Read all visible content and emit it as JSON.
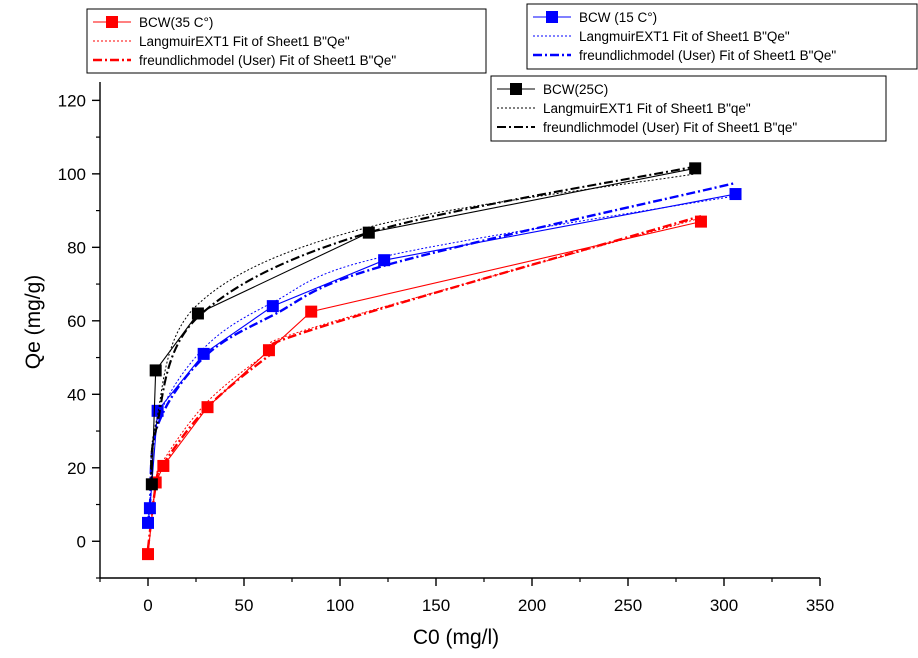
{
  "chart_data": {
    "type": "scatter",
    "xlabel": "C0 (mg/l)",
    "ylabel": "Qe (mg/g)",
    "xlim": [
      -25,
      350
    ],
    "ylim": [
      -10,
      125
    ],
    "xticks": [
      0,
      50,
      100,
      150,
      200,
      250,
      300,
      350
    ],
    "yticks": [
      0,
      20,
      40,
      60,
      80,
      100,
      120
    ],
    "grid": false,
    "groups": [
      {
        "legend_placement": "top-left",
        "color": "#ff0000",
        "data": {
          "name": "BCW(35 C°)",
          "x": [
            0,
            4,
            8,
            31,
            63,
            85,
            288
          ],
          "y": [
            -3.5,
            16,
            20.5,
            36.5,
            52,
            62.5,
            87
          ]
        },
        "fits": [
          {
            "name": "LangmuirEXT1 Fit of Sheet1 B\"Qe\"",
            "style": "dotted",
            "x": [
              0,
              4,
              8,
              31,
              63,
              85,
              288
            ],
            "y": [
              -3,
              16,
              22,
              38,
              51.5,
              58,
              88
            ]
          },
          {
            "name": "freundlichmodel (User) Fit of Sheet1 B\"Qe\"",
            "style": "dashdot",
            "x": [
              0,
              4,
              8,
              31,
              63,
              85,
              288
            ],
            "y": [
              -2,
              15,
              21,
              36.5,
              50.5,
              57.5,
              88.5
            ]
          }
        ]
      },
      {
        "legend_placement": "top-right",
        "color": "#0000ff",
        "data": {
          "name": "BCW (15 C°)",
          "x": [
            0,
            1,
            5,
            29,
            65,
            123,
            306
          ],
          "y": [
            5,
            9,
            35.5,
            51,
            64,
            76.5,
            94.5
          ]
        },
        "fits": [
          {
            "name": "LangmuirEXT1 Fit of Sheet1 B\"Qe\"",
            "style": "dotted",
            "x": [
              0,
              1,
              5,
              29,
              65,
              123,
              306
            ],
            "y": [
              5,
              11,
              33,
              52.5,
              65,
              77.5,
              94
            ]
          },
          {
            "name": "freundlichmodel (User) Fit of Sheet1 B\"Qe\"",
            "style": "dashdot",
            "x": [
              0,
              1,
              5,
              29,
              65,
              123,
              306
            ],
            "y": [
              4.5,
              10,
              31.5,
              50,
              61.5,
              75,
              97.5
            ]
          }
        ]
      },
      {
        "legend_placement": "right",
        "color": "#000000",
        "data": {
          "name": "BCW(25C)",
          "x": [
            2,
            4,
            26,
            115,
            285
          ],
          "y": [
            15.5,
            46.5,
            62,
            84,
            101.5
          ]
        },
        "fits": [
          {
            "name": "LangmuirEXT1 Fit of Sheet1 B\"qe\"",
            "style": "dotted",
            "x": [
              2,
              4,
              26,
              115,
              285
            ],
            "y": [
              15,
              32,
              64.5,
              85.5,
              100
            ]
          },
          {
            "name": "freundlichmodel (User) Fit of Sheet1 B\"qe\"",
            "style": "dashdot",
            "x": [
              2,
              4,
              26,
              115,
              285
            ],
            "y": [
              15,
              30,
              61,
              84,
              102
            ]
          }
        ]
      }
    ]
  }
}
